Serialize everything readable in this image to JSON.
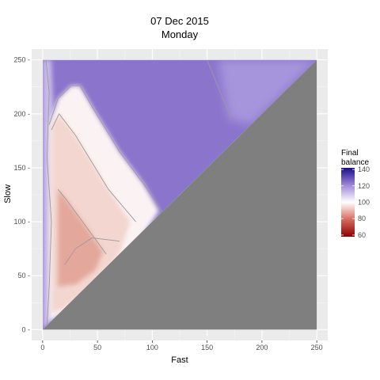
{
  "chart_data": {
    "type": "heatmap",
    "title": "07 Dec 2015",
    "subtitle": "Monday",
    "xlabel": "Fast",
    "ylabel": "Slow",
    "xlim": [
      -10,
      260
    ],
    "ylim": [
      -10,
      260
    ],
    "x_ticks": [
      0,
      50,
      100,
      150,
      200,
      250
    ],
    "y_ticks": [
      0,
      50,
      100,
      150,
      200,
      250
    ],
    "x_tick_labels": [
      "0",
      "50",
      "100",
      "150",
      "200",
      "250"
    ],
    "y_tick_labels": [
      "0 -",
      "50 -",
      "100 -",
      "150 -",
      "200 -",
      "250 -"
    ],
    "grid": true,
    "legend": {
      "title_line1": "Final",
      "title_line2": "balance",
      "placement": "right",
      "range": [
        58,
        142
      ],
      "ticks": [
        60,
        80,
        100,
        120,
        140
      ],
      "tick_labels": [
        "60",
        "80",
        "100",
        "120",
        "140"
      ],
      "colors": {
        "low": "#8b0000",
        "mid": "#ffffff",
        "high": "#1a0d8a"
      }
    },
    "masked_region": "Fast >= Slow",
    "mask_color": "#7f7f7f",
    "panel_background": "#ebebeb"
  }
}
